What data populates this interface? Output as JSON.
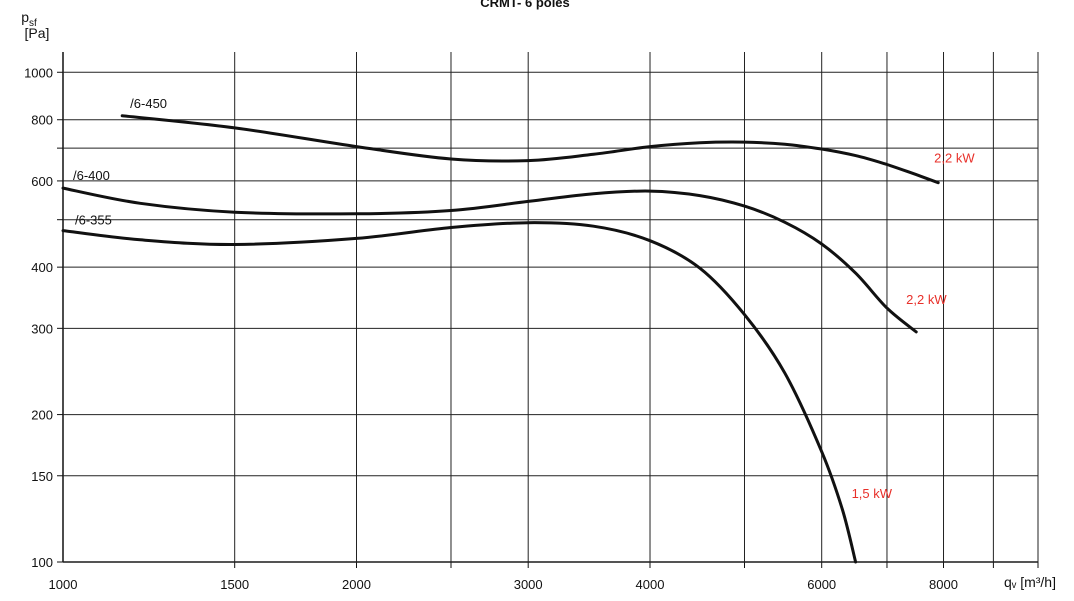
{
  "chart_data": {
    "type": "line",
    "title": "CRMT- 6 poles",
    "ylabel_symbol": "p",
    "ylabel_sub": "sf",
    "ylabel_unit": "[Pa]",
    "xlabel": "qᵥ [m³/h]",
    "x_scale": "log",
    "y_scale": "log",
    "xlim": [
      1000,
      10000
    ],
    "ylim": [
      100,
      1100
    ],
    "x_ticks": [
      {
        "value": 1000,
        "label": "1000"
      },
      {
        "value": 1500,
        "label": "1500"
      },
      {
        "value": 2000,
        "label": "2000"
      },
      {
        "value": 3000,
        "label": "3000"
      },
      {
        "value": 4000,
        "label": "4000"
      },
      {
        "value": 6000,
        "label": "6000"
      },
      {
        "value": 8000,
        "label": "8000"
      }
    ],
    "y_ticks": [
      {
        "value": 100,
        "label": "100"
      },
      {
        "value": 150,
        "label": "150"
      },
      {
        "value": 200,
        "label": "200"
      },
      {
        "value": 300,
        "label": "300"
      },
      {
        "value": 400,
        "label": "400"
      },
      {
        "value": 600,
        "label": "600"
      },
      {
        "value": 800,
        "label": "800"
      },
      {
        "value": 1000,
        "label": "1000"
      }
    ],
    "grid": true,
    "line_color": "#111111",
    "power_label_color": "#e8302a",
    "series": [
      {
        "name": "/6-450",
        "power": "2,2 kW",
        "x": [
          1150,
          1500,
          2000,
          2500,
          3000,
          3500,
          4000,
          4500,
          5000,
          5500,
          6000,
          6500,
          7000,
          7500,
          7900
        ],
        "y": [
          815,
          770,
          705,
          665,
          660,
          680,
          705,
          718,
          720,
          713,
          697,
          676,
          648,
          618,
          595
        ]
      },
      {
        "name": "/6-400",
        "power": "2,2 kW",
        "x": [
          1000,
          1200,
          1500,
          2000,
          2500,
          3000,
          3500,
          4000,
          4500,
          5000,
          5500,
          6000,
          6500,
          7000,
          7500
        ],
        "y": [
          580,
          540,
          518,
          514,
          522,
          545,
          565,
          572,
          560,
          533,
          494,
          446,
          389,
          330,
          295
        ]
      },
      {
        "name": "/6-355",
        "power": "1,5 kW",
        "x": [
          1000,
          1200,
          1500,
          2000,
          2500,
          3000,
          3500,
          4000,
          4500,
          5000,
          5500,
          6000,
          6300,
          6500
        ],
        "y": [
          475,
          455,
          445,
          458,
          482,
          493,
          485,
          453,
          398,
          320,
          243,
          168,
          128,
          100
        ]
      }
    ]
  }
}
